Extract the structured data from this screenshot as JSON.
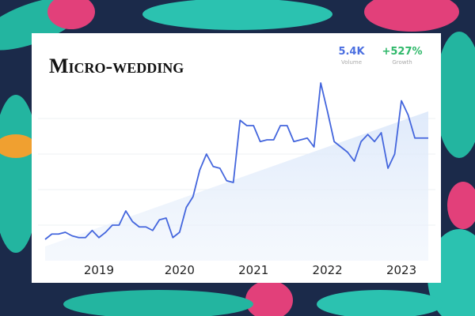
{
  "chart_data": {
    "type": "line",
    "title": "Micro-wedding",
    "stats": [
      {
        "value": "5.4K",
        "label": "Volume",
        "color": "#4a6ee0"
      },
      {
        "value": "+527%",
        "label": "Growth",
        "color": "#2fb86a"
      }
    ],
    "categories": [
      null,
      null,
      null,
      null,
      null,
      null,
      null,
      null,
      "2019",
      null,
      null,
      null,
      null,
      null,
      null,
      null,
      null,
      null,
      null,
      null,
      "2020",
      null,
      null,
      null,
      null,
      null,
      null,
      null,
      null,
      null,
      null,
      "2021",
      null,
      null,
      null,
      null,
      null,
      null,
      null,
      null,
      null,
      null,
      "2022",
      null,
      null,
      null,
      null,
      null,
      null,
      null,
      null,
      null,
      null,
      "2023",
      null,
      null,
      null,
      null
    ],
    "series": [
      {
        "color": "#4466dd",
        "values": [
          12,
          15,
          15,
          16,
          14,
          13,
          13,
          17,
          13,
          16,
          20,
          20,
          28,
          22,
          19,
          19,
          17,
          23,
          24,
          13,
          16,
          30,
          36,
          51,
          60,
          53,
          52,
          45,
          44,
          79,
          76,
          76,
          67,
          68,
          68,
          76,
          76,
          67,
          68,
          69,
          64,
          100,
          84,
          67,
          64,
          61,
          56,
          67,
          71,
          67,
          72,
          52,
          60,
          90,
          82,
          69,
          69,
          69
        ]
      }
    ],
    "trend": [
      8,
      84
    ],
    "trend_color": "#dce8fa",
    "ylim": [
      0,
      100
    ]
  }
}
